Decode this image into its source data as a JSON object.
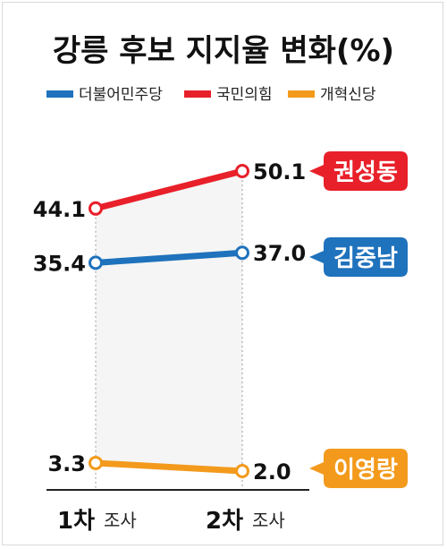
{
  "chart_data": {
    "type": "line",
    "title": "강릉 후보 지지율 변화(%)",
    "categories": [
      {
        "main": "1차",
        "sub": "조사"
      },
      {
        "main": "2차",
        "sub": "조사"
      }
    ],
    "series": [
      {
        "name": "국민의힘",
        "color": "#e8202a",
        "values": [
          44.1,
          50.1
        ],
        "labels": [
          "44.1",
          "50.1"
        ],
        "candidate": "권성동"
      },
      {
        "name": "더불어민주당",
        "color": "#1f72bc",
        "values": [
          35.4,
          37.0
        ],
        "labels": [
          "35.4",
          "37.0"
        ],
        "candidate": "김중남"
      },
      {
        "name": "개혁신당",
        "color": "#f39a1c",
        "values": [
          3.3,
          2.0
        ],
        "labels": [
          "3.3",
          "2.0"
        ],
        "candidate": "이영랑"
      }
    ],
    "legend": [
      {
        "name": "더불어민주당",
        "color": "#1f72bc"
      },
      {
        "name": "국민의힘",
        "color": "#e8202a"
      },
      {
        "name": "개혁신당",
        "color": "#f39a1c"
      }
    ],
    "legend_position": "top",
    "grid": false
  }
}
